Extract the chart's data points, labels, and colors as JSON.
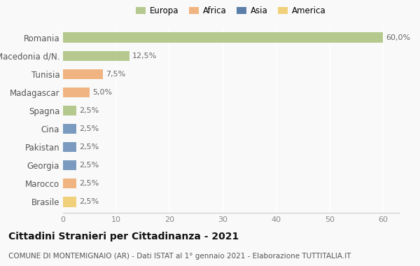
{
  "countries": [
    "Romania",
    "Macedonia d/N.",
    "Tunisia",
    "Madagascar",
    "Spagna",
    "Cina",
    "Pakistan",
    "Georgia",
    "Marocco",
    "Brasile"
  ],
  "values": [
    60.0,
    12.5,
    7.5,
    5.0,
    2.5,
    2.5,
    2.5,
    2.5,
    2.5,
    2.5
  ],
  "labels": [
    "60,0%",
    "12,5%",
    "7,5%",
    "5,0%",
    "2,5%",
    "2,5%",
    "2,5%",
    "2,5%",
    "2,5%",
    "2,5%"
  ],
  "colors": [
    "#b5c98e",
    "#b5c98e",
    "#f0b482",
    "#f0b482",
    "#b5c98e",
    "#7a9bbf",
    "#7a9bbf",
    "#7a9bbf",
    "#f0b482",
    "#f0d07a"
  ],
  "continent_legend": [
    {
      "label": "Europa",
      "color": "#b5c98e"
    },
    {
      "label": "Africa",
      "color": "#f0b482"
    },
    {
      "label": "Asia",
      "color": "#5b7faa"
    },
    {
      "label": "America",
      "color": "#f0d07a"
    }
  ],
  "xlim": [
    0,
    63
  ],
  "xticks": [
    0,
    10,
    20,
    30,
    40,
    50,
    60
  ],
  "title": "Cittadini Stranieri per Cittadinanza - 2021",
  "subtitle": "COMUNE DI MONTEMIGNAIO (AR) - Dati ISTAT al 1° gennaio 2021 - Elaborazione TUTTITALIA.IT",
  "title_fontsize": 10,
  "subtitle_fontsize": 7.5,
  "bar_height": 0.55,
  "background_color": "#f9f9f9",
  "grid_color": "#ffffff",
  "label_fontsize": 8
}
